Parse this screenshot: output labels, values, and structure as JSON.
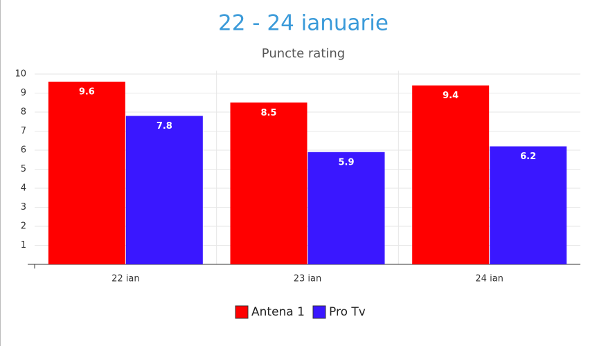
{
  "chart_data": {
    "type": "bar",
    "title": "22 - 24 ianuarie",
    "subtitle": "Puncte rating",
    "categories": [
      "22 ian",
      "23 ian",
      "24 ian"
    ],
    "series": [
      {
        "name": "Antena 1",
        "color": "#ff0000",
        "values": [
          9.6,
          8.5,
          9.4
        ]
      },
      {
        "name": "Pro Tv",
        "color": "#3a17ff",
        "values": [
          7.8,
          5.9,
          6.2
        ]
      }
    ],
    "ylim": [
      0,
      10
    ],
    "yticks": [
      1,
      2,
      3,
      4,
      5,
      6,
      7,
      8,
      9,
      10
    ],
    "grid": true,
    "legend": "bottom"
  }
}
